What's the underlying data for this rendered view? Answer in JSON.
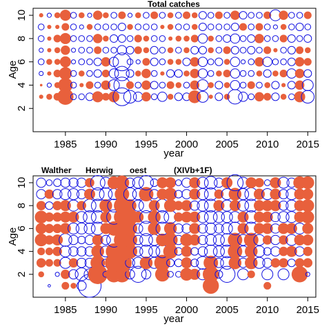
{
  "chart_data": [
    {
      "type": "bubble",
      "title": "Total catches",
      "xlabel": "year",
      "ylabel": "Age",
      "xlim": [
        1981,
        2016
      ],
      "ylim": [
        0,
        10.6
      ],
      "xticks": [
        1985,
        1990,
        1995,
        2000,
        2005,
        2010,
        2015
      ],
      "yticks": [
        2,
        4,
        6,
        8,
        10
      ],
      "ages": [
        3,
        4,
        5,
        6,
        7,
        8,
        9,
        10
      ],
      "years": [
        1982,
        1983,
        1984,
        1985,
        1986,
        1987,
        1988,
        1989,
        1990,
        1991,
        1992,
        1993,
        1994,
        1995,
        1996,
        1997,
        1998,
        1999,
        2000,
        2001,
        2002,
        2003,
        2004,
        2005,
        2006,
        2007,
        2008,
        2009,
        2010,
        2011,
        2012,
        2013,
        2014,
        2015
      ],
      "legend": "none",
      "series": [
        {
          "name": "positive residual",
          "color": "#e8603c",
          "filled": true
        },
        {
          "name": "negative residual",
          "color": "#1010e0",
          "filled": false
        }
      ],
      "residuals": [
        [
          0.2,
          0.3,
          0.4,
          0.9,
          -0.3,
          -0.3,
          -0.4,
          0.6,
          0.4,
          0.6,
          -1.0,
          -0.7,
          -0.5,
          0.5,
          -0.3,
          -0.5,
          0.3,
          -0.4,
          -0.4,
          0.7,
          -0.6,
          0.2,
          -0.4,
          0.3,
          -0.8,
          -0.5,
          -0.3,
          0.5,
          0.4,
          -0.4,
          0.3,
          -0.3,
          0.6,
          -0.7
        ],
        [
          0.1,
          -0.2,
          0.3,
          0.8,
          -0.3,
          0.2,
          0.4,
          -0.3,
          0.5,
          -0.6,
          -0.9,
          0.4,
          -0.3,
          0.5,
          -0.4,
          -0.3,
          0.4,
          0.3,
          -0.3,
          0.5,
          -0.6,
          0.3,
          -0.4,
          0.3,
          -0.5,
          -0.3,
          0.4,
          -0.3,
          0.3,
          -0.4,
          0.2,
          -0.4,
          0.5,
          -0.6
        ],
        [
          -0.2,
          0.2,
          0.4,
          0.7,
          -0.3,
          0.3,
          -0.3,
          -0.4,
          0.4,
          -0.5,
          -0.8,
          -0.4,
          0.3,
          0.5,
          -0.3,
          0.2,
          -0.4,
          -0.4,
          0.3,
          0.5,
          -0.5,
          -0.3,
          0.3,
          0.4,
          -0.5,
          -0.3,
          -0.3,
          0.3,
          -0.4,
          0.3,
          0.4,
          -0.5,
          0.5,
          -0.4
        ],
        [
          -0.3,
          0.3,
          0.3,
          0.6,
          -0.2,
          -0.3,
          -0.3,
          -0.4,
          0.5,
          -0.5,
          -1.0,
          -0.3,
          -0.2,
          0.4,
          -0.4,
          -0.3,
          0.3,
          0.3,
          -0.4,
          0.5,
          -0.5,
          -0.3,
          -0.4,
          0.3,
          -0.5,
          -0.2,
          -0.3,
          0.5,
          -0.5,
          -0.3,
          -0.3,
          -0.4,
          0.5,
          0.4
        ],
        [
          -0.2,
          0.2,
          0.3,
          0.5,
          -0.2,
          -0.3,
          -0.3,
          0.4,
          -0.3,
          -0.3,
          -0.5,
          -0.4,
          0.4,
          0.3,
          -0.4,
          -0.3,
          0.3,
          -0.3,
          0.3,
          -0.4,
          -0.4,
          0.3,
          -0.3,
          0.4,
          -0.4,
          -0.3,
          -0.4,
          -0.3,
          0.4,
          0.2,
          -0.3,
          -0.4,
          0.4,
          0.3
        ],
        [
          -0.3,
          0.2,
          0.4,
          0.6,
          -0.3,
          -0.3,
          -0.3,
          0.5,
          0.3,
          -0.4,
          -0.4,
          -0.3,
          0.4,
          0.3,
          -0.3,
          -0.3,
          0.2,
          0.3,
          0.3,
          0.4,
          -0.5,
          0.3,
          -0.3,
          -0.4,
          -0.5,
          -0.3,
          -0.4,
          0.5,
          -0.3,
          -0.3,
          0.4,
          -0.4,
          -0.3,
          -0.4
        ],
        [
          -0.3,
          0.2,
          0.2,
          0.4,
          -0.3,
          -0.2,
          0.3,
          -0.3,
          -0.3,
          -0.3,
          -0.4,
          0.3,
          -0.3,
          -0.3,
          -0.3,
          0.2,
          0.3,
          -0.3,
          -0.3,
          0.3,
          -0.4,
          -0.3,
          -0.3,
          -0.3,
          -0.4,
          0.4,
          -0.3,
          0.4,
          -0.3,
          -0.2,
          0.3,
          -0.3,
          -0.4,
          -0.3
        ],
        [
          0.2,
          -0.2,
          0.3,
          0.6,
          -0.3,
          0.3,
          -0.2,
          0.5,
          0.3,
          -0.3,
          0.4,
          -0.2,
          0.3,
          -0.3,
          0.4,
          -0.3,
          0.3,
          -0.3,
          0.4,
          0.3,
          -0.4,
          -0.3,
          0.4,
          -0.3,
          0.5,
          -0.4,
          -0.3,
          -0.3,
          0.4,
          -0.6,
          0.5,
          -0.3,
          -0.3,
          0.4
        ]
      ]
    },
    {
      "type": "bubble",
      "title": "",
      "annotations": [
        "Walther",
        "Herwig",
        "oest",
        "(XIVb+1F)"
      ],
      "xlabel": "year",
      "ylabel": "Age",
      "xlim": [
        1981,
        2016
      ],
      "ylim": [
        0,
        10.6
      ],
      "xticks": [
        1985,
        1990,
        1995,
        2000,
        2005,
        2010,
        2015
      ],
      "yticks": [
        2,
        4,
        6,
        8,
        10
      ],
      "ages": [
        1,
        2,
        3,
        4,
        5,
        6,
        7,
        8,
        9,
        10
      ],
      "years": [
        1982,
        1983,
        1984,
        1985,
        1986,
        1987,
        1988,
        1989,
        1990,
        1991,
        1992,
        1993,
        1994,
        1995,
        1996,
        1997,
        1998,
        1999,
        2000,
        2001,
        2002,
        2003,
        2004,
        2005,
        2006,
        2007,
        2008,
        2009,
        2010,
        2011,
        2012,
        2013,
        2014,
        2015
      ],
      "legend": "none",
      "series": [
        {
          "name": "positive residual",
          "color": "#e8603c",
          "filled": true
        },
        {
          "name": "negative residual",
          "color": "#1010e0",
          "filled": false
        }
      ],
      "residuals": [
        [
          0,
          -0.1,
          0,
          0.4,
          0.3,
          -0.5,
          -1.3,
          0,
          0,
          0,
          0,
          0,
          0,
          0,
          0,
          0,
          0,
          0,
          0,
          0,
          0,
          0.9,
          0,
          0,
          0,
          0,
          0,
          0,
          0.4,
          0,
          0,
          0,
          0,
          0
        ],
        [
          0.3,
          0,
          -0.2,
          0.5,
          -0.5,
          -0.7,
          -0.6,
          1.1,
          -0.3,
          0.9,
          0.9,
          -0.5,
          -0.9,
          -0.5,
          0,
          0.8,
          -0.3,
          -0.3,
          0.7,
          0.6,
          -0.6,
          0.9,
          -0.4,
          -0.9,
          0,
          -0.6,
          0.4,
          0,
          -0.6,
          0,
          -0.6,
          0,
          0.9,
          -0.2
        ],
        [
          0.5,
          0.4,
          0.4,
          -0.6,
          0.5,
          -0.5,
          -0.5,
          0.8,
          -0.4,
          1.0,
          1.1,
          -0.5,
          -0.6,
          0.7,
          -0.6,
          0.9,
          -0.4,
          -0.4,
          0.6,
          -0.4,
          -0.7,
          0.8,
          -0.5,
          -0.7,
          0.7,
          -0.5,
          0.7,
          -0.6,
          -0.5,
          0.5,
          0.5,
          -0.4,
          0.5,
          0.5
        ],
        [
          0.4,
          0.4,
          0.5,
          -0.6,
          -0.5,
          -0.5,
          -0.5,
          0.7,
          -0.6,
          0.9,
          1.1,
          0.8,
          -0.5,
          -0.7,
          -0.6,
          -0.7,
          0.8,
          -0.4,
          0.6,
          -0.4,
          -0.5,
          -0.7,
          -0.6,
          -0.7,
          0.8,
          -0.6,
          0.7,
          -0.6,
          -0.4,
          -0.5,
          0.5,
          0.6,
          -0.5,
          0.5
        ],
        [
          0.7,
          0.5,
          0.6,
          -0.7,
          -0.5,
          -0.4,
          -0.5,
          0.6,
          -0.5,
          -0.8,
          0.9,
          0.8,
          -0.5,
          -0.7,
          -0.6,
          0.7,
          0.8,
          -0.5,
          0.7,
          0.6,
          -0.5,
          -0.6,
          -0.6,
          -0.7,
          0.8,
          -0.6,
          0.8,
          -0.6,
          0.5,
          -0.5,
          0.5,
          -0.6,
          0.6,
          0.6
        ],
        [
          0.6,
          0.5,
          0.5,
          0.6,
          -0.6,
          -0.6,
          -0.6,
          -0.7,
          0.6,
          0.8,
          0.9,
          0.8,
          -0.5,
          -0.8,
          0.7,
          -0.7,
          0.7,
          -0.5,
          -0.5,
          0.6,
          -0.5,
          -0.6,
          -0.5,
          -0.6,
          -0.7,
          0.6,
          -0.7,
          0.6,
          0.6,
          -0.5,
          0.6,
          0.6,
          -0.6,
          0.6
        ],
        [
          0.7,
          0.5,
          0.5,
          0.6,
          0.6,
          -0.6,
          -0.7,
          -0.7,
          0.6,
          -0.8,
          0.9,
          0.9,
          0.6,
          -0.7,
          0.7,
          -0.7,
          -0.7,
          0.5,
          0.6,
          0.6,
          -0.6,
          -0.7,
          -0.6,
          -0.6,
          -0.6,
          0.6,
          -0.7,
          0.6,
          0.6,
          -0.5,
          -0.6,
          -0.6,
          0.6,
          0.7
        ],
        [
          0.5,
          -0.4,
          0.5,
          0.6,
          -0.6,
          0.5,
          -0.7,
          -0.7,
          0.7,
          -0.7,
          0.9,
          0.7,
          -0.6,
          -0.8,
          0.6,
          -0.7,
          0.7,
          0.5,
          0.6,
          -0.5,
          -0.6,
          -0.7,
          0.6,
          -0.6,
          0.6,
          -0.6,
          -0.7,
          0.6,
          0.6,
          0.6,
          -0.5,
          -0.6,
          0.6,
          0.7
        ],
        [
          -0.5,
          0.5,
          -0.5,
          -0.6,
          -0.6,
          -0.5,
          0.6,
          -0.7,
          -0.7,
          -0.6,
          0.8,
          -0.7,
          -0.6,
          0.8,
          -0.5,
          0.6,
          0.7,
          -0.4,
          -0.5,
          0.6,
          -0.6,
          -0.7,
          0.5,
          -0.6,
          0.7,
          -0.6,
          -0.7,
          0.6,
          -0.6,
          0.6,
          -0.5,
          -0.6,
          0.6,
          0.6
        ],
        [
          -0.5,
          -0.3,
          -0.4,
          -0.5,
          -0.5,
          -0.5,
          0.5,
          -0.8,
          -0.6,
          0.7,
          0.8,
          -0.5,
          -0.6,
          -0.8,
          -0.4,
          0.6,
          0.6,
          -0.3,
          -0.5,
          0.6,
          -0.6,
          -0.7,
          -0.5,
          0.6,
          -0.9,
          -0.6,
          0.6,
          0.5,
          -0.3,
          0.6,
          -0.6,
          -0.5,
          0.7,
          0.7
        ]
      ]
    }
  ]
}
